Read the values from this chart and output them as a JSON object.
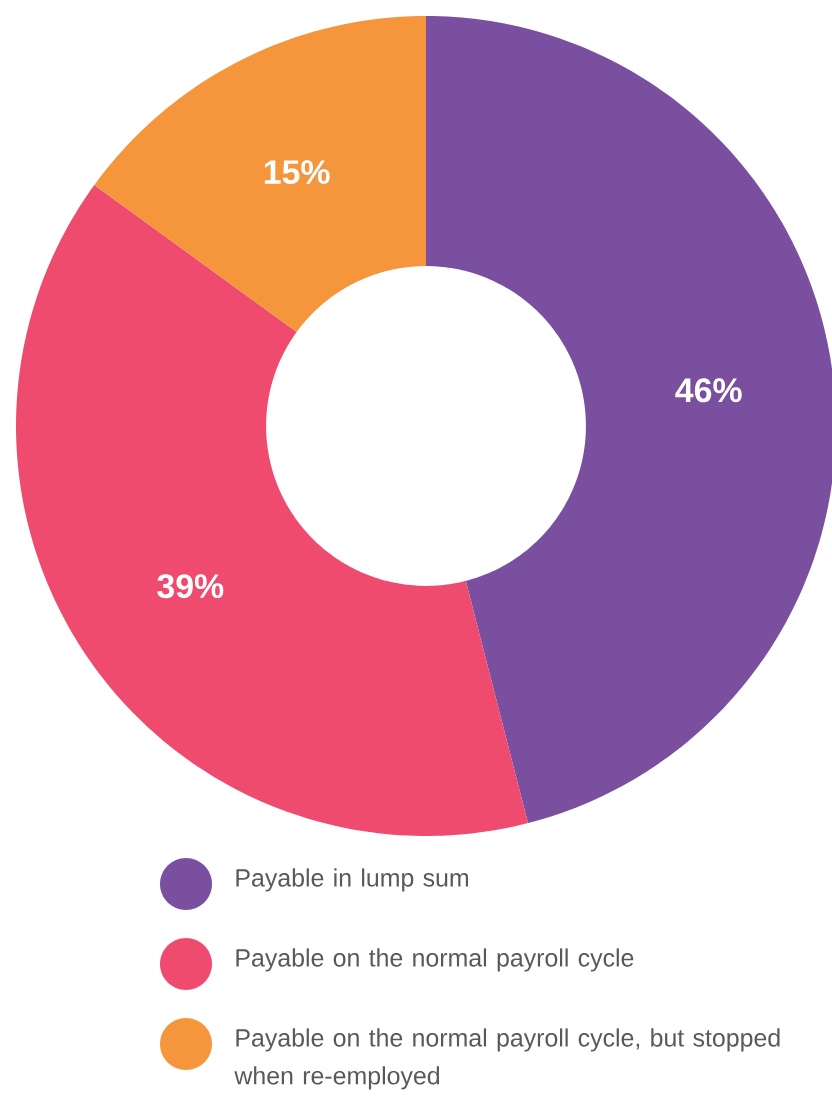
{
  "chart_data": {
    "type": "donut",
    "categories": [
      "Payable in lump sum",
      "Payable on the normal payroll cycle",
      "Payable on the normal payroll cycle, but stopped when re-employed"
    ],
    "values": [
      46,
      39,
      15
    ],
    "value_labels": [
      "46%",
      "39%",
      "15%"
    ],
    "colors": [
      "#7b4fa0",
      "#ef4b6e",
      "#f5963c"
    ],
    "legend": "bottom"
  }
}
